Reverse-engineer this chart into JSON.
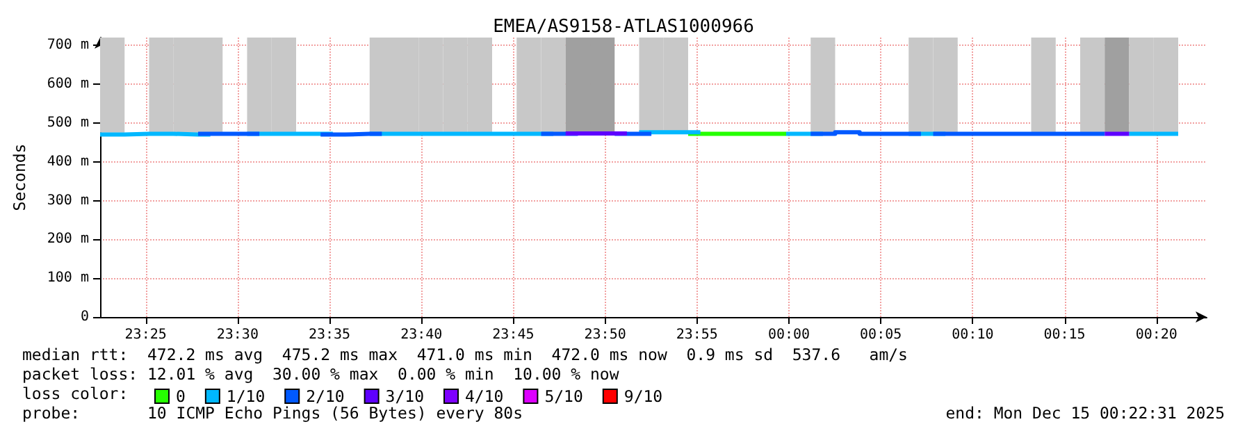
{
  "chart_data": {
    "type": "step",
    "title": "EMEA/AS9158-ATLAS1000966",
    "ylabel": "Seconds",
    "legend_title": "loss color:",
    "legend": "bottom",
    "grid": true,
    "marker": "none",
    "line_style": "solid",
    "xlim": [
      "2025-12-14T23:22:31",
      "2025-12-15T00:22:44"
    ],
    "xticks": [
      {
        "value": "2025-12-14T23:25",
        "label": "23:25"
      },
      {
        "value": "2025-12-14T23:30",
        "label": "23:30"
      },
      {
        "value": "2025-12-14T23:35",
        "label": "23:35"
      },
      {
        "value": "2025-12-14T23:40",
        "label": "23:40"
      },
      {
        "value": "2025-12-14T23:45",
        "label": "23:45"
      },
      {
        "value": "2025-12-14T23:50",
        "label": "23:50"
      },
      {
        "value": "2025-12-14T23:55",
        "label": "23:55"
      },
      {
        "value": "2025-12-15T00:00",
        "label": "00:00"
      },
      {
        "value": "2025-12-15T00:05",
        "label": "00:05"
      },
      {
        "value": "2025-12-15T00:10",
        "label": "00:10"
      },
      {
        "value": "2025-12-15T00:15",
        "label": "00:15"
      },
      {
        "value": "2025-12-15T00:20",
        "label": "00:20"
      }
    ],
    "ylim": [
      0,
      720
    ],
    "yticks": [
      {
        "value": 0,
        "label": "0"
      },
      {
        "value": 100,
        "label": "100 m"
      },
      {
        "value": 200,
        "label": "200 m"
      },
      {
        "value": 300,
        "label": "300 m"
      },
      {
        "value": 400,
        "label": "400 m"
      },
      {
        "value": 500,
        "label": "500 m"
      },
      {
        "value": 600,
        "label": "600 m"
      },
      {
        "value": 700,
        "label": "700 m"
      }
    ],
    "annotations": [
      "median rtt:  472.2 ms avg  475.2 ms max  471.0 ms min  472.0 ms now  0.9 ms sd  537.6   am/s",
      "packet loss: 12.01 % avg  30.00 % max  0.00 % min  10.00 % now",
      "probe:       10 ICMP Echo Pings (56 Bytes) every 80s",
      "end: Mon Dec 15 00:22:31 2025"
    ],
    "series": [
      {
        "type": "bar",
        "x": [
          "2025-12-14T23:23:11",
          "2025-12-14T23:25:51",
          "2025-12-14T23:27:11",
          "2025-12-14T23:28:31",
          "2025-12-14T23:31:11",
          "2025-12-14T23:32:31",
          "2025-12-14T23:37:51",
          "2025-12-14T23:39:11",
          "2025-12-14T23:40:31",
          "2025-12-14T23:41:51",
          "2025-12-14T23:43:11",
          "2025-12-14T23:45:51",
          "2025-12-14T23:47:11",
          "2025-12-14T23:48:31",
          "2025-12-14T23:49:51",
          "2025-12-14T23:52:31",
          "2025-12-14T23:53:51",
          "2025-12-15T00:01:51",
          "2025-12-15T00:07:11",
          "2025-12-15T00:08:31",
          "2025-12-15T00:13:51",
          "2025-12-15T00:16:31",
          "2025-12-15T00:17:51",
          "2025-12-15T00:19:11",
          "2025-12-15T00:20:31"
        ],
        "base": [
          475,
          475,
          475,
          475,
          475,
          475,
          475,
          475,
          475,
          475,
          475,
          475,
          475,
          475,
          475,
          475,
          475,
          475,
          475,
          475,
          475,
          475,
          475,
          475,
          475
        ],
        "values": [
          245,
          245,
          245,
          245,
          245,
          245,
          245,
          245,
          245,
          245,
          245,
          245,
          245,
          245,
          245,
          245,
          245,
          245,
          245,
          245,
          245,
          245,
          245,
          245,
          245
        ],
        "colors": [
          "#c8c8c8",
          "#c8c8c8",
          "#c8c8c8",
          "#c8c8c8",
          "#c8c8c8",
          "#c8c8c8",
          "#c8c8c8",
          "#c8c8c8",
          "#c8c8c8",
          "#c8c8c8",
          "#c8c8c8",
          "#c8c8c8",
          "#c8c8c8",
          "#a0a0a0",
          "#a0a0a0",
          "#c8c8c8",
          "#c8c8c8",
          "#c8c8c8",
          "#c8c8c8",
          "#c8c8c8",
          "#c8c8c8",
          "#c8c8c8",
          "#a0a0a0",
          "#c8c8c8",
          "#c8c8c8"
        ]
      },
      {
        "name": "0",
        "color": "#26ff00",
        "x": [
          "2025-12-14T23:54:31",
          "2025-12-14T23:55:51",
          "2025-12-14T23:57:11",
          "2025-12-14T23:58:31",
          "2025-12-14T23:59:51"
        ],
        "values": [
          472,
          472,
          472,
          472,
          472
        ]
      },
      {
        "name": "1/10",
        "color": "#00b8ff",
        "x": [
          "2025-12-14T23:22:31",
          "2025-12-14T23:23:51",
          "2025-12-14T23:25:11",
          "2025-12-14T23:26:31",
          "2025-12-14T23:27:51",
          "2025-12-14T23:28:31",
          "2025-12-14T23:30:31",
          "2025-12-14T23:31:51",
          "2025-12-14T23:33:11",
          "2025-12-14T23:34:31",
          "2025-12-14T23:35:11",
          "2025-12-14T23:37:11",
          "2025-12-14T23:38:31",
          "2025-12-14T23:39:51",
          "2025-12-14T23:41:11",
          "2025-12-14T23:42:31",
          "2025-12-14T23:43:51",
          "2025-12-14T23:45:11",
          "2025-12-14T23:46:31",
          "2025-12-14T23:47:11",
          "2025-12-14T23:51:51",
          "2025-12-14T23:53:11",
          "2025-12-14T23:54:31",
          "2025-12-14T23:55:11",
          "2025-12-14T23:59:51",
          "2025-12-15T00:01:11",
          "2025-12-15T00:01:51",
          "2025-12-15T00:06:31",
          "2025-12-15T00:07:51",
          "2025-12-15T00:08:31",
          "2025-12-15T00:18:31",
          "2025-12-15T00:19:51",
          "2025-12-15T00:21:11"
        ],
        "values": [
          470,
          472,
          472,
          470,
          470,
          null,
          472,
          472,
          472,
          472,
          null,
          472,
          472,
          472,
          472,
          472,
          472,
          472,
          472,
          null,
          476,
          476,
          476,
          null,
          472,
          472,
          null,
          472,
          472,
          null,
          472,
          472,
          472
        ]
      },
      {
        "name": "2/10",
        "color": "#0059ff",
        "x": [
          "2025-12-14T23:27:51",
          "2025-12-14T23:29:11",
          "2025-12-14T23:30:31",
          "2025-12-14T23:31:11",
          "2025-12-14T23:34:31",
          "2025-12-14T23:35:51",
          "2025-12-14T23:37:11",
          "2025-12-14T23:37:51",
          "2025-12-14T23:46:31",
          "2025-12-14T23:47:51",
          "2025-12-14T23:48:31",
          "2025-12-14T23:50:31",
          "2025-12-14T23:51:51",
          "2025-12-14T23:52:31",
          "2025-12-15T00:01:11",
          "2025-12-15T00:02:31",
          "2025-12-15T00:03:51",
          "2025-12-15T00:05:11",
          "2025-12-15T00:06:31",
          "2025-12-15T00:07:11",
          "2025-12-15T00:07:51",
          "2025-12-15T00:09:11",
          "2025-12-15T00:10:31",
          "2025-12-15T00:11:51",
          "2025-12-15T00:13:11",
          "2025-12-15T00:14:31",
          "2025-12-15T00:15:51",
          "2025-12-15T00:17:11"
        ],
        "values": [
          472,
          472,
          472,
          null,
          470,
          472,
          472,
          null,
          472,
          472,
          null,
          472,
          472,
          null,
          472,
          476,
          472,
          472,
          472,
          null,
          472,
          472,
          472,
          472,
          472,
          472,
          472,
          472
        ]
      },
      {
        "name": "3/10",
        "color": "#5e00ff",
        "x": [
          "2025-12-14T23:47:51",
          "2025-12-14T23:49:11",
          "2025-12-14T23:50:31",
          "2025-12-14T23:51:11",
          "2025-12-15T00:17:11",
          "2025-12-15T00:18:31"
        ],
        "values": [
          473,
          473,
          473,
          null,
          472,
          472
        ]
      },
      {
        "name": "4/10",
        "color": "#7e00ff"
      },
      {
        "name": "5/10",
        "color": "#dd00ff"
      },
      {
        "name": "9/10",
        "color": "#ff0000"
      }
    ]
  }
}
